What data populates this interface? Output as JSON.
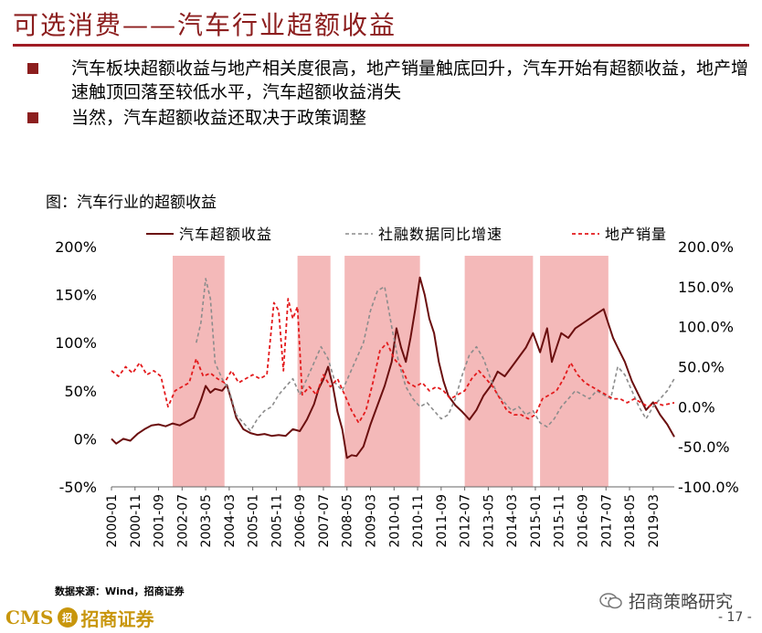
{
  "slide": {
    "title": "可选消费——汽车行业超额收益",
    "bullets": [
      "汽车板块超额收益与地产相关度很高，地产销量触底回升，汽车开始有超额收益，地产增速触顶回落至较低水平，汽车超额收益消失",
      "当然，汽车超额收益还取决于政策调整"
    ],
    "figure_caption": "图：汽车行业的超额收益",
    "source": "数据来源：Wind，招商证券",
    "footer": {
      "logo_text": "CMS",
      "logo_badge": "招",
      "logo_cn": "招商证券",
      "wechat_account": "招商策略研究",
      "page_number": "- 17 -"
    }
  },
  "colors": {
    "title": "#8c1e1e",
    "excess_return": "#6b0f0f",
    "tsf_growth": "#8c8c8c",
    "property_sales": "#e31a1c",
    "shading": "#f4b9b9"
  },
  "chart_data": {
    "type": "line",
    "title": "汽车行业的超额收益",
    "x_tick_labels": [
      "2000-01",
      "2000-11",
      "2001-09",
      "2002-07",
      "2003-05",
      "2004-03",
      "2005-01",
      "2005-11",
      "2006-09",
      "2007-07",
      "2008-05",
      "2009-03",
      "2010-01",
      "2010-11",
      "2011-09",
      "2012-07",
      "2013-05",
      "2014-03",
      "2015-01",
      "2015-11",
      "2016-09",
      "2017-07",
      "2018-05",
      "2019-03"
    ],
    "x_range": [
      "2000-01",
      "2019-12"
    ],
    "left_axis": {
      "ticks": [
        "200%",
        "150%",
        "100%",
        "50%",
        "0%",
        "-50%"
      ],
      "min": -0.5,
      "max": 2.0
    },
    "right_axis": {
      "ticks": [
        "200.0%",
        "150.0%",
        "100.0%",
        "50.0%",
        "0.0%",
        "-50.0%",
        "-100.0%"
      ],
      "min": -1.0,
      "max": 2.0
    },
    "legend_placement": "top",
    "shaded_periods": [
      [
        "2002-03",
        "2004-01"
      ],
      [
        "2006-08",
        "2007-10"
      ],
      [
        "2008-04",
        "2010-12"
      ],
      [
        "2012-07",
        "2014-12"
      ],
      [
        "2015-03",
        "2017-08"
      ]
    ],
    "series": [
      {
        "name": "汽车超额收益",
        "axis": "left",
        "style": "solid",
        "points": [
          [
            "2000-01",
            0.0
          ],
          [
            "2000-03",
            -0.05
          ],
          [
            "2000-06",
            0.0
          ],
          [
            "2000-09",
            -0.02
          ],
          [
            "2000-12",
            0.05
          ],
          [
            "2001-03",
            0.1
          ],
          [
            "2001-06",
            0.14
          ],
          [
            "2001-09",
            0.15
          ],
          [
            "2001-12",
            0.13
          ],
          [
            "2002-03",
            0.16
          ],
          [
            "2002-06",
            0.14
          ],
          [
            "2002-09",
            0.18
          ],
          [
            "2002-12",
            0.22
          ],
          [
            "2003-03",
            0.4
          ],
          [
            "2003-05",
            0.55
          ],
          [
            "2003-07",
            0.48
          ],
          [
            "2003-09",
            0.52
          ],
          [
            "2003-12",
            0.5
          ],
          [
            "2004-02",
            0.56
          ],
          [
            "2004-04",
            0.4
          ],
          [
            "2004-06",
            0.22
          ],
          [
            "2004-09",
            0.1
          ],
          [
            "2004-12",
            0.06
          ],
          [
            "2005-03",
            0.04
          ],
          [
            "2005-06",
            0.05
          ],
          [
            "2005-09",
            0.03
          ],
          [
            "2005-12",
            0.04
          ],
          [
            "2006-03",
            0.03
          ],
          [
            "2006-06",
            0.1
          ],
          [
            "2006-09",
            0.08
          ],
          [
            "2006-12",
            0.2
          ],
          [
            "2007-03",
            0.36
          ],
          [
            "2007-05",
            0.52
          ],
          [
            "2007-07",
            0.62
          ],
          [
            "2007-09",
            0.75
          ],
          [
            "2007-11",
            0.55
          ],
          [
            "2008-01",
            0.28
          ],
          [
            "2008-03",
            0.1
          ],
          [
            "2008-05",
            -0.2
          ],
          [
            "2008-07",
            -0.17
          ],
          [
            "2008-09",
            -0.18
          ],
          [
            "2008-12",
            -0.08
          ],
          [
            "2009-03",
            0.15
          ],
          [
            "2009-06",
            0.35
          ],
          [
            "2009-09",
            0.55
          ],
          [
            "2009-12",
            0.8
          ],
          [
            "2010-02",
            1.15
          ],
          [
            "2010-04",
            0.95
          ],
          [
            "2010-06",
            0.8
          ],
          [
            "2010-08",
            1.05
          ],
          [
            "2010-10",
            1.35
          ],
          [
            "2010-12",
            1.68
          ],
          [
            "2011-02",
            1.5
          ],
          [
            "2011-04",
            1.25
          ],
          [
            "2011-06",
            1.1
          ],
          [
            "2011-08",
            0.8
          ],
          [
            "2011-10",
            0.6
          ],
          [
            "2011-12",
            0.45
          ],
          [
            "2012-03",
            0.35
          ],
          [
            "2012-06",
            0.28
          ],
          [
            "2012-09",
            0.2
          ],
          [
            "2012-12",
            0.3
          ],
          [
            "2013-03",
            0.45
          ],
          [
            "2013-06",
            0.55
          ],
          [
            "2013-09",
            0.7
          ],
          [
            "2013-12",
            0.65
          ],
          [
            "2014-03",
            0.75
          ],
          [
            "2014-06",
            0.85
          ],
          [
            "2014-09",
            0.95
          ],
          [
            "2014-12",
            1.1
          ],
          [
            "2015-03",
            0.9
          ],
          [
            "2015-06",
            1.15
          ],
          [
            "2015-08",
            0.8
          ],
          [
            "2015-10",
            0.95
          ],
          [
            "2015-12",
            1.1
          ],
          [
            "2016-03",
            1.05
          ],
          [
            "2016-06",
            1.15
          ],
          [
            "2016-09",
            1.2
          ],
          [
            "2016-12",
            1.25
          ],
          [
            "2017-03",
            1.3
          ],
          [
            "2017-06",
            1.35
          ],
          [
            "2017-08",
            1.2
          ],
          [
            "2017-10",
            1.05
          ],
          [
            "2017-12",
            0.95
          ],
          [
            "2018-03",
            0.8
          ],
          [
            "2018-06",
            0.6
          ],
          [
            "2018-09",
            0.45
          ],
          [
            "2018-12",
            0.3
          ],
          [
            "2019-03",
            0.38
          ],
          [
            "2019-06",
            0.25
          ],
          [
            "2019-09",
            0.15
          ],
          [
            "2019-12",
            0.02
          ]
        ]
      },
      {
        "name": "社融数据同比增速",
        "axis": "right",
        "style": "dashed",
        "points": [
          [
            "2003-01",
            0.8
          ],
          [
            "2003-03",
            1.05
          ],
          [
            "2003-05",
            1.6
          ],
          [
            "2003-07",
            1.35
          ],
          [
            "2003-09",
            0.55
          ],
          [
            "2003-12",
            0.35
          ],
          [
            "2004-03",
            0.2
          ],
          [
            "2004-06",
            -0.1
          ],
          [
            "2004-09",
            -0.2
          ],
          [
            "2004-12",
            -0.3
          ],
          [
            "2005-03",
            -0.15
          ],
          [
            "2005-06",
            -0.05
          ],
          [
            "2005-09",
            0.0
          ],
          [
            "2005-12",
            0.15
          ],
          [
            "2006-03",
            0.25
          ],
          [
            "2006-06",
            0.35
          ],
          [
            "2006-09",
            0.15
          ],
          [
            "2006-12",
            0.35
          ],
          [
            "2007-03",
            0.55
          ],
          [
            "2007-06",
            0.75
          ],
          [
            "2007-09",
            0.6
          ],
          [
            "2007-12",
            0.3
          ],
          [
            "2008-03",
            0.2
          ],
          [
            "2008-06",
            0.4
          ],
          [
            "2008-09",
            0.6
          ],
          [
            "2008-12",
            0.8
          ],
          [
            "2009-03",
            1.2
          ],
          [
            "2009-06",
            1.45
          ],
          [
            "2009-09",
            1.5
          ],
          [
            "2009-12",
            1.0
          ],
          [
            "2010-03",
            0.55
          ],
          [
            "2010-06",
            0.25
          ],
          [
            "2010-09",
            0.1
          ],
          [
            "2010-12",
            0.0
          ],
          [
            "2011-03",
            0.05
          ],
          [
            "2011-06",
            -0.05
          ],
          [
            "2011-09",
            -0.15
          ],
          [
            "2011-12",
            -0.1
          ],
          [
            "2012-03",
            0.1
          ],
          [
            "2012-06",
            0.4
          ],
          [
            "2012-09",
            0.65
          ],
          [
            "2012-12",
            0.75
          ],
          [
            "2013-03",
            0.6
          ],
          [
            "2013-06",
            0.35
          ],
          [
            "2013-09",
            0.15
          ],
          [
            "2013-12",
            0.05
          ],
          [
            "2014-03",
            -0.05
          ],
          [
            "2014-06",
            0.0
          ],
          [
            "2014-09",
            -0.1
          ],
          [
            "2014-12",
            -0.05
          ],
          [
            "2015-03",
            -0.2
          ],
          [
            "2015-06",
            -0.25
          ],
          [
            "2015-09",
            -0.15
          ],
          [
            "2015-12",
            0.0
          ],
          [
            "2016-03",
            0.1
          ],
          [
            "2016-06",
            0.2
          ],
          [
            "2016-09",
            0.15
          ],
          [
            "2016-12",
            0.1
          ],
          [
            "2017-03",
            0.2
          ],
          [
            "2017-06",
            0.15
          ],
          [
            "2017-09",
            0.1
          ],
          [
            "2017-12",
            0.5
          ],
          [
            "2018-03",
            0.4
          ],
          [
            "2018-06",
            0.2
          ],
          [
            "2018-09",
            0.0
          ],
          [
            "2018-12",
            -0.15
          ],
          [
            "2019-03",
            0.0
          ],
          [
            "2019-06",
            0.1
          ],
          [
            "2019-09",
            0.2
          ],
          [
            "2019-12",
            0.35
          ]
        ]
      },
      {
        "name": "地产销量",
        "axis": "right",
        "style": "dashed",
        "points": [
          [
            "2000-01",
            0.45
          ],
          [
            "2000-04",
            0.38
          ],
          [
            "2000-07",
            0.5
          ],
          [
            "2000-10",
            0.42
          ],
          [
            "2001-01",
            0.55
          ],
          [
            "2001-04",
            0.4
          ],
          [
            "2001-07",
            0.45
          ],
          [
            "2001-10",
            0.38
          ],
          [
            "2002-01",
            0.0
          ],
          [
            "2002-04",
            0.2
          ],
          [
            "2002-07",
            0.25
          ],
          [
            "2002-10",
            0.3
          ],
          [
            "2003-01",
            0.6
          ],
          [
            "2003-04",
            0.38
          ],
          [
            "2003-07",
            0.42
          ],
          [
            "2003-10",
            0.35
          ],
          [
            "2004-01",
            0.3
          ],
          [
            "2004-04",
            0.45
          ],
          [
            "2004-07",
            0.3
          ],
          [
            "2004-10",
            0.35
          ],
          [
            "2005-01",
            0.4
          ],
          [
            "2005-04",
            0.35
          ],
          [
            "2005-07",
            0.4
          ],
          [
            "2005-10",
            1.3
          ],
          [
            "2005-12",
            1.2
          ],
          [
            "2006-02",
            0.45
          ],
          [
            "2006-04",
            1.35
          ],
          [
            "2006-06",
            1.1
          ],
          [
            "2006-08",
            1.25
          ],
          [
            "2006-10",
            0.15
          ],
          [
            "2007-01",
            0.25
          ],
          [
            "2007-04",
            0.15
          ],
          [
            "2007-07",
            0.4
          ],
          [
            "2007-10",
            0.25
          ],
          [
            "2008-01",
            0.35
          ],
          [
            "2008-04",
            0.15
          ],
          [
            "2008-07",
            -0.05
          ],
          [
            "2008-10",
            -0.2
          ],
          [
            "2009-01",
            -0.05
          ],
          [
            "2009-04",
            0.3
          ],
          [
            "2009-07",
            0.7
          ],
          [
            "2009-10",
            0.8
          ],
          [
            "2010-01",
            0.6
          ],
          [
            "2010-04",
            0.5
          ],
          [
            "2010-07",
            0.3
          ],
          [
            "2010-10",
            0.25
          ],
          [
            "2011-01",
            0.3
          ],
          [
            "2011-04",
            0.2
          ],
          [
            "2011-07",
            0.25
          ],
          [
            "2011-10",
            0.2
          ],
          [
            "2012-01",
            0.1
          ],
          [
            "2012-04",
            0.15
          ],
          [
            "2012-07",
            0.2
          ],
          [
            "2012-10",
            0.35
          ],
          [
            "2013-01",
            0.45
          ],
          [
            "2013-04",
            0.35
          ],
          [
            "2013-07",
            0.25
          ],
          [
            "2013-10",
            0.1
          ],
          [
            "2014-01",
            -0.05
          ],
          [
            "2014-04",
            -0.1
          ],
          [
            "2014-07",
            -0.1
          ],
          [
            "2014-10",
            -0.15
          ],
          [
            "2015-01",
            -0.1
          ],
          [
            "2015-04",
            0.1
          ],
          [
            "2015-07",
            0.15
          ],
          [
            "2015-10",
            0.2
          ],
          [
            "2016-01",
            0.35
          ],
          [
            "2016-04",
            0.55
          ],
          [
            "2016-07",
            0.4
          ],
          [
            "2016-10",
            0.3
          ],
          [
            "2017-01",
            0.25
          ],
          [
            "2017-04",
            0.2
          ],
          [
            "2017-07",
            0.15
          ],
          [
            "2017-10",
            0.1
          ],
          [
            "2018-01",
            0.1
          ],
          [
            "2018-04",
            0.05
          ],
          [
            "2018-07",
            0.1
          ],
          [
            "2018-10",
            0.05
          ],
          [
            "2019-01",
            0.0
          ],
          [
            "2019-04",
            0.05
          ],
          [
            "2019-07",
            0.02
          ],
          [
            "2019-12",
            0.05
          ]
        ]
      }
    ]
  }
}
